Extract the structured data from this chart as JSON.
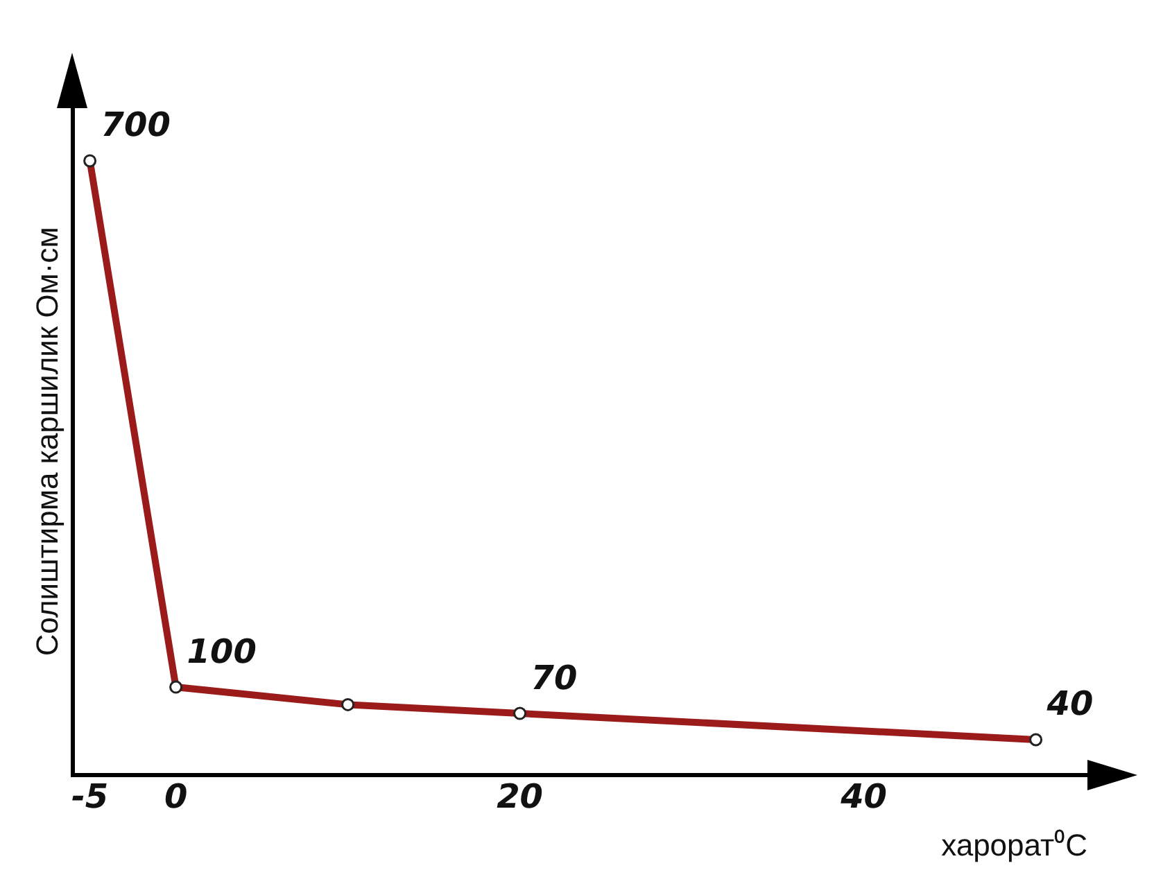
{
  "chart_data": {
    "type": "line",
    "xlabel": "харорат⁰C",
    "ylabel": "Солиштирма каршилик Ом·см",
    "x": [
      -5,
      0,
      10,
      20,
      50
    ],
    "series": [
      {
        "color": "#9b1b1b",
        "values": [
          700,
          100,
          80,
          70,
          40
        ],
        "value_labels": [
          "700",
          "100",
          null,
          "70",
          "40"
        ]
      }
    ],
    "xlim": [
      -6,
      53
    ],
    "xticks": [
      -5,
      0,
      20,
      40
    ],
    "ylim": [
      0,
      760
    ],
    "tick_labels": "x",
    "grid": false,
    "legend": false,
    "marker": "circle",
    "line_style": "solid"
  }
}
